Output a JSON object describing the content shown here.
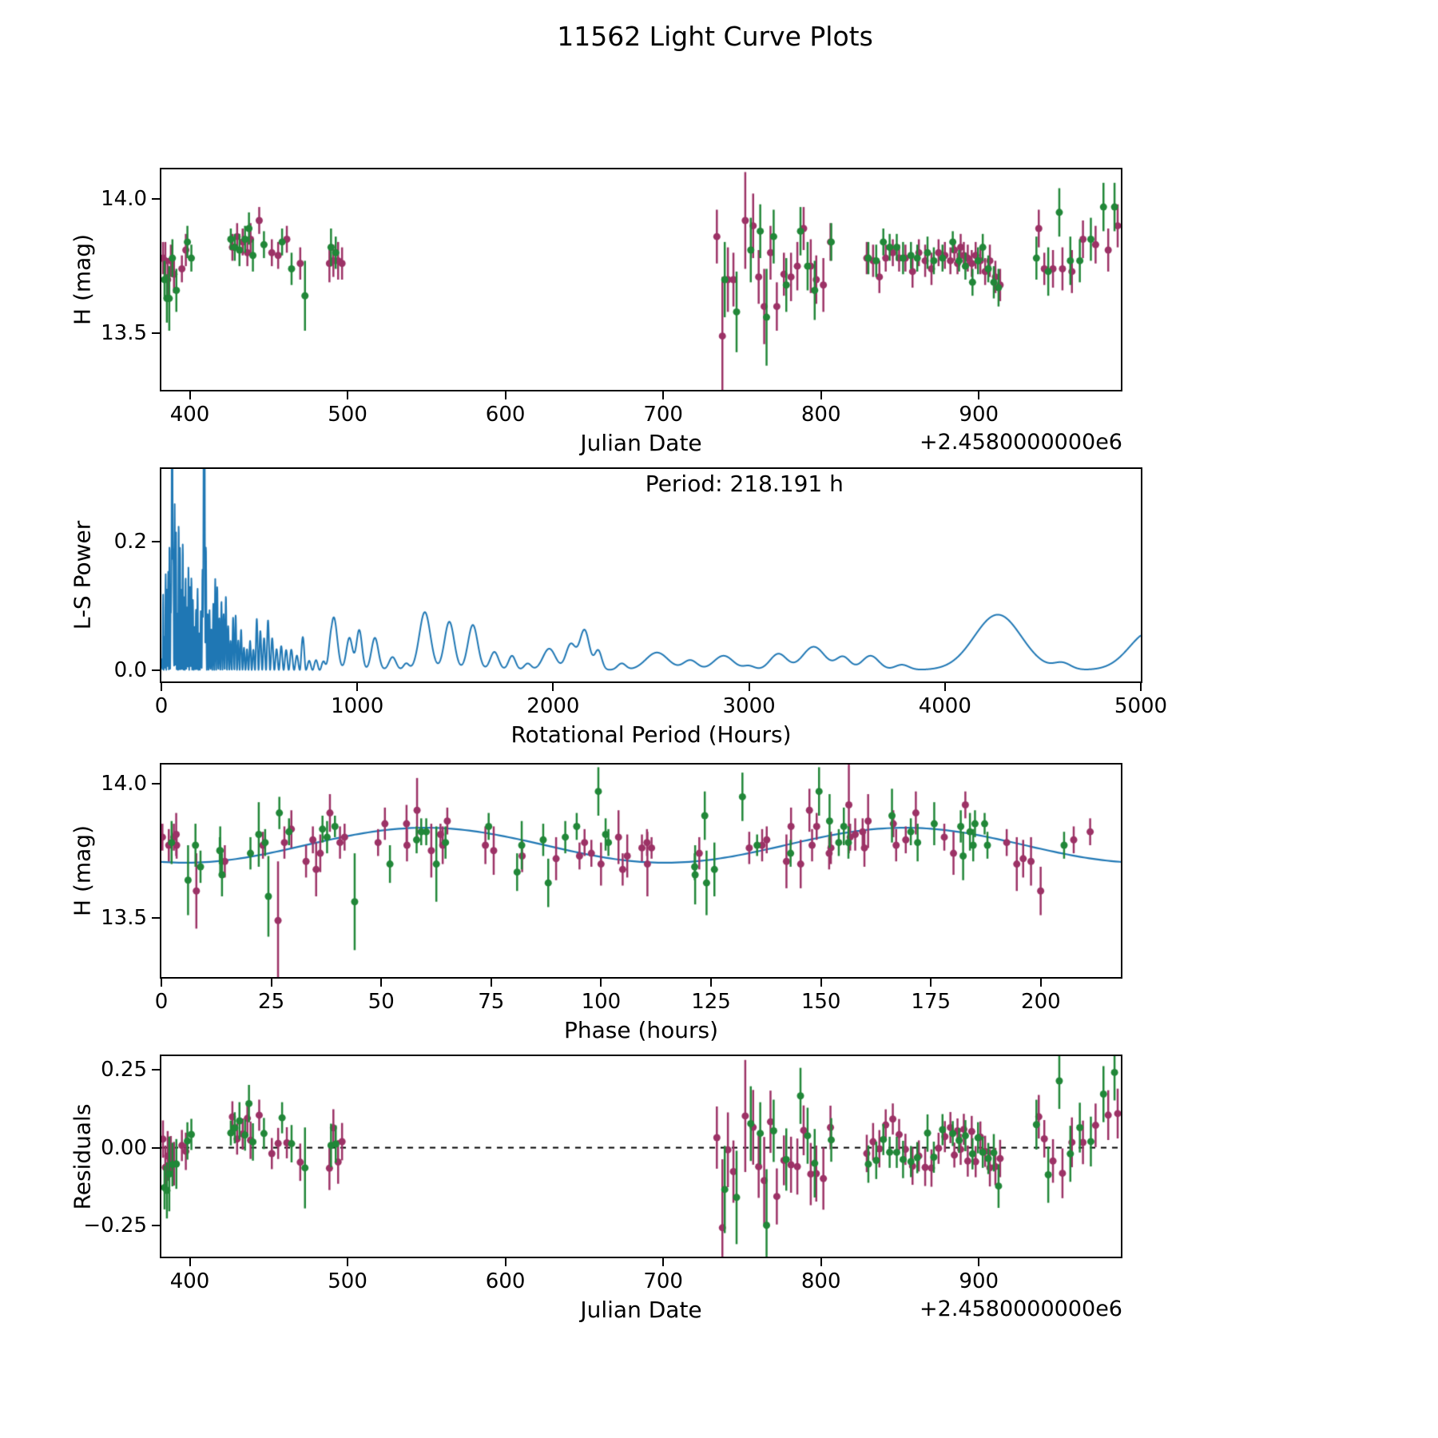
{
  "title": "11562 Light Curve Plots",
  "colors": {
    "purple": "#9c3266",
    "green": "#218738",
    "line_blue": "#1f77b4",
    "black": "#000000"
  },
  "chart_data": [
    {
      "id": "lightcurve",
      "type": "scatter",
      "xlabel": "Julian Date",
      "x_offset_label": "+2.4580000000e6",
      "ylabel": "H (mag)",
      "xlim": [
        382,
        990
      ],
      "ylim": [
        13.29,
        14.11
      ],
      "xticks": {
        "values": [
          400,
          500,
          600,
          700,
          800,
          900
        ],
        "labels": [
          "400",
          "500",
          "600",
          "700",
          "800",
          "900"
        ]
      },
      "yticks": {
        "values": [
          14.0,
          13.5
        ],
        "labels": [
          "14.0",
          "13.5"
        ]
      },
      "series": [
        {
          "name": "magenta-observations",
          "color": "purple",
          "points": [
            [
              383.0,
              13.78,
              0.06
            ],
            [
              384.5,
              13.77,
              0.07
            ],
            [
              386.0,
              13.7,
              0.08
            ],
            [
              388.0,
              13.77,
              0.06
            ],
            [
              390.0,
              13.72,
              0.07
            ],
            [
              395.0,
              13.74,
              0.05
            ],
            [
              397.5,
              13.81,
              0.06
            ],
            [
              427.0,
              13.82,
              0.05
            ],
            [
              430.0,
              13.86,
              0.05
            ],
            [
              433.5,
              13.84,
              0.05
            ],
            [
              436.5,
              13.8,
              0.05
            ],
            [
              438.5,
              13.85,
              0.06
            ],
            [
              444.0,
              13.92,
              0.05
            ],
            [
              452.0,
              13.8,
              0.05
            ],
            [
              456.0,
              13.79,
              0.05
            ],
            [
              461.5,
              13.85,
              0.05
            ],
            [
              470.0,
              13.76,
              0.06
            ],
            [
              488.5,
              13.76,
              0.07
            ],
            [
              491.0,
              13.77,
              0.06
            ],
            [
              494.0,
              13.77,
              0.07
            ],
            [
              496.5,
              13.76,
              0.06
            ],
            [
              734.0,
              13.86,
              0.1
            ],
            [
              737.5,
              13.49,
              0.22
            ],
            [
              741.0,
              13.7,
              0.12
            ],
            [
              744.5,
              13.7,
              0.1
            ],
            [
              752.0,
              13.92,
              0.18
            ],
            [
              757.0,
              13.9,
              0.12
            ],
            [
              760.5,
              13.71,
              0.1
            ],
            [
              764.0,
              13.6,
              0.14
            ],
            [
              768.0,
              13.8,
              0.1
            ],
            [
              772.0,
              13.6,
              0.09
            ],
            [
              776.5,
              13.72,
              0.08
            ],
            [
              781.0,
              13.71,
              0.09
            ],
            [
              785.0,
              13.75,
              0.09
            ],
            [
              789.0,
              13.89,
              0.08
            ],
            [
              793.5,
              13.75,
              0.1
            ],
            [
              797.0,
              13.7,
              0.09
            ],
            [
              801.5,
              13.68,
              0.1
            ],
            [
              806.0,
              13.84,
              0.07
            ],
            [
              829.0,
              13.78,
              0.06
            ],
            [
              833.0,
              13.77,
              0.06
            ],
            [
              837.0,
              13.71,
              0.06
            ],
            [
              841.0,
              13.78,
              0.05
            ],
            [
              845.5,
              13.8,
              0.05
            ],
            [
              849.5,
              13.78,
              0.05
            ],
            [
              853.5,
              13.78,
              0.05
            ],
            [
              858.0,
              13.73,
              0.06
            ],
            [
              862.0,
              13.8,
              0.05
            ],
            [
              866.0,
              13.77,
              0.06
            ],
            [
              870.0,
              13.74,
              0.06
            ],
            [
              874.5,
              13.8,
              0.05
            ],
            [
              878.5,
              13.79,
              0.05
            ],
            [
              882.0,
              13.77,
              0.05
            ],
            [
              884.5,
              13.81,
              0.04
            ],
            [
              886.5,
              13.76,
              0.04
            ],
            [
              888.5,
              13.82,
              0.05
            ],
            [
              890.5,
              13.79,
              0.05
            ],
            [
              893.0,
              13.78,
              0.05
            ],
            [
              895.5,
              13.76,
              0.05
            ],
            [
              898.0,
              13.79,
              0.05
            ],
            [
              901.0,
              13.77,
              0.05
            ],
            [
              904.0,
              13.73,
              0.05
            ],
            [
              907.0,
              13.77,
              0.06
            ],
            [
              910.5,
              13.71,
              0.06
            ],
            [
              913.5,
              13.68,
              0.06
            ],
            [
              938.0,
              13.89,
              0.07
            ],
            [
              941.5,
              13.74,
              0.06
            ],
            [
              947.0,
              13.74,
              0.07
            ],
            [
              953.0,
              13.74,
              0.08
            ],
            [
              959.0,
              13.73,
              0.08
            ],
            [
              966.0,
              13.85,
              0.07
            ],
            [
              974.0,
              13.83,
              0.07
            ],
            [
              982.0,
              13.81,
              0.08
            ],
            [
              988.0,
              13.9,
              0.08
            ]
          ]
        },
        {
          "name": "green-observations",
          "color": "green",
          "points": [
            [
              384.0,
              13.7,
              0.07
            ],
            [
              385.5,
              13.63,
              0.09
            ],
            [
              387.0,
              13.63,
              0.12
            ],
            [
              389.0,
              13.78,
              0.07
            ],
            [
              391.5,
              13.66,
              0.08
            ],
            [
              398.5,
              13.84,
              0.06
            ],
            [
              401.0,
              13.78,
              0.05
            ],
            [
              426.0,
              13.85,
              0.04
            ],
            [
              428.5,
              13.82,
              0.05
            ],
            [
              431.5,
              13.81,
              0.06
            ],
            [
              435.0,
              13.85,
              0.05
            ],
            [
              437.5,
              13.89,
              0.06
            ],
            [
              440.0,
              13.79,
              0.06
            ],
            [
              447.0,
              13.83,
              0.05
            ],
            [
              458.5,
              13.84,
              0.05
            ],
            [
              464.5,
              13.74,
              0.06
            ],
            [
              473.0,
              13.64,
              0.13
            ],
            [
              489.5,
              13.82,
              0.07
            ],
            [
              492.5,
              13.8,
              0.06
            ],
            [
              739.0,
              13.7,
              0.14
            ],
            [
              746.5,
              13.58,
              0.15
            ],
            [
              755.5,
              13.81,
              0.12
            ],
            [
              761.5,
              13.88,
              0.1
            ],
            [
              765.5,
              13.56,
              0.18
            ],
            [
              770.0,
              13.86,
              0.1
            ],
            [
              778.0,
              13.68,
              0.1
            ],
            [
              787.0,
              13.88,
              0.09
            ],
            [
              791.5,
              13.75,
              0.09
            ],
            [
              796.0,
              13.66,
              0.11
            ],
            [
              806.5,
              13.84,
              0.07
            ],
            [
              830.0,
              13.78,
              0.06
            ],
            [
              835.0,
              13.77,
              0.06
            ],
            [
              839.5,
              13.84,
              0.05
            ],
            [
              843.5,
              13.82,
              0.05
            ],
            [
              848.0,
              13.82,
              0.05
            ],
            [
              852.0,
              13.78,
              0.06
            ],
            [
              857.0,
              13.79,
              0.05
            ],
            [
              861.0,
              13.78,
              0.05
            ],
            [
              867.5,
              13.8,
              0.06
            ],
            [
              871.5,
              13.77,
              0.05
            ],
            [
              877.0,
              13.78,
              0.05
            ],
            [
              883.5,
              13.84,
              0.04
            ],
            [
              887.5,
              13.77,
              0.04
            ],
            [
              891.5,
              13.75,
              0.05
            ],
            [
              896.0,
              13.69,
              0.05
            ],
            [
              899.5,
              13.77,
              0.05
            ],
            [
              902.5,
              13.82,
              0.05
            ],
            [
              906.0,
              13.74,
              0.05
            ],
            [
              909.5,
              13.69,
              0.06
            ],
            [
              912.5,
              13.67,
              0.07
            ],
            [
              936.5,
              13.78,
              0.08
            ],
            [
              944.0,
              13.73,
              0.09
            ],
            [
              951.0,
              13.95,
              0.09
            ],
            [
              958.0,
              13.77,
              0.09
            ],
            [
              964.0,
              13.77,
              0.08
            ],
            [
              971.0,
              13.85,
              0.08
            ],
            [
              979.0,
              13.97,
              0.09
            ],
            [
              986.0,
              13.97,
              0.09
            ]
          ]
        }
      ]
    },
    {
      "id": "periodogram",
      "type": "line",
      "xlabel": "Rotational Period (Hours)",
      "ylabel": "L-S Power",
      "annotation": "Period: 218.191 h",
      "best_period_hours": 218.191,
      "xlim": [
        0,
        5000
      ],
      "ylim": [
        -0.018,
        0.313
      ],
      "xticks": {
        "values": [
          0,
          1000,
          2000,
          3000,
          4000,
          5000
        ],
        "labels": [
          "0",
          "1000",
          "2000",
          "3000",
          "4000",
          "5000"
        ]
      },
      "yticks": {
        "values": [
          0.2,
          0.0
        ],
        "labels": [
          "0.2",
          "0.0"
        ]
      },
      "envelope_nodes": [
        [
          0,
          0.05
        ],
        [
          20,
          0.22
        ],
        [
          50,
          0.3
        ],
        [
          80,
          0.24
        ],
        [
          120,
          0.2
        ],
        [
          180,
          0.19
        ],
        [
          218,
          0.3
        ],
        [
          240,
          0.17
        ],
        [
          280,
          0.14
        ],
        [
          330,
          0.12
        ],
        [
          380,
          0.1
        ],
        [
          450,
          0.095
        ],
        [
          520,
          0.09
        ],
        [
          600,
          0.075
        ],
        [
          660,
          0.085
        ],
        [
          720,
          0.06
        ],
        [
          780,
          0.05
        ],
        [
          830,
          0.04
        ],
        [
          870,
          0.0
        ]
      ],
      "smooth_peaks": [
        [
          880,
          25,
          0.082
        ],
        [
          960,
          22,
          0.05
        ],
        [
          1010,
          20,
          0.062
        ],
        [
          1090,
          25,
          0.05
        ],
        [
          1180,
          25,
          0.02
        ],
        [
          1250,
          20,
          0.01
        ],
        [
          1345,
          40,
          0.09
        ],
        [
          1470,
          35,
          0.075
        ],
        [
          1590,
          35,
          0.07
        ],
        [
          1700,
          30,
          0.028
        ],
        [
          1790,
          25,
          0.022
        ],
        [
          1870,
          25,
          0.01
        ],
        [
          1980,
          45,
          0.033
        ],
        [
          2090,
          35,
          0.04
        ],
        [
          2160,
          35,
          0.062
        ],
        [
          2230,
          25,
          0.03
        ],
        [
          2350,
          30,
          0.01
        ],
        [
          2530,
          80,
          0.027
        ],
        [
          2700,
          50,
          0.015
        ],
        [
          2870,
          70,
          0.022
        ],
        [
          3000,
          40,
          0.006
        ],
        [
          3150,
          60,
          0.025
        ],
        [
          3330,
          80,
          0.036
        ],
        [
          3480,
          50,
          0.02
        ],
        [
          3620,
          60,
          0.022
        ],
        [
          3780,
          50,
          0.008
        ],
        [
          4270,
          170,
          0.086
        ],
        [
          4600,
          60,
          0.01
        ],
        [
          5050,
          150,
          0.06
        ]
      ],
      "tall_peaks": [
        [
          55,
          0.4
        ],
        [
          218.191,
          0.55
        ]
      ],
      "spike_period_model": {
        "base": 6.5,
        "quad": 21000
      }
    },
    {
      "id": "phase",
      "type": "scatter",
      "xlabel": "Phase (hours)",
      "ylabel": "H (mag)",
      "xlim": [
        0,
        218.191
      ],
      "ylim": [
        13.28,
        14.07
      ],
      "xticks": {
        "values": [
          0,
          25,
          50,
          75,
          100,
          125,
          150,
          175,
          200
        ],
        "labels": [
          "0",
          "25",
          "50",
          "75",
          "100",
          "125",
          "150",
          "175",
          "200"
        ]
      },
      "yticks": {
        "values": [
          14.0,
          13.5
        ],
        "labels": [
          "14.0",
          "13.5"
        ]
      },
      "fit_model": {
        "mean": 13.77,
        "amplitude": 0.065,
        "phase_zero_h": 32.73,
        "half_period_h": 109.0955,
        "period_h": 218.191
      }
    },
    {
      "id": "residuals",
      "type": "scatter",
      "xlabel": "Julian Date",
      "x_offset_label": "+2.4580000000e6",
      "ylabel": "Residuals",
      "xlim": [
        382,
        990
      ],
      "ylim": [
        -0.35,
        0.294
      ],
      "xticks": {
        "values": [
          400,
          500,
          600,
          700,
          800,
          900
        ],
        "labels": [
          "400",
          "500",
          "600",
          "700",
          "800",
          "900"
        ]
      },
      "yticks": {
        "values": [
          0.25,
          0.0,
          -0.25
        ],
        "labels": [
          "0.25",
          "0.00",
          "−0.25"
        ]
      },
      "zero_line": true
    }
  ]
}
